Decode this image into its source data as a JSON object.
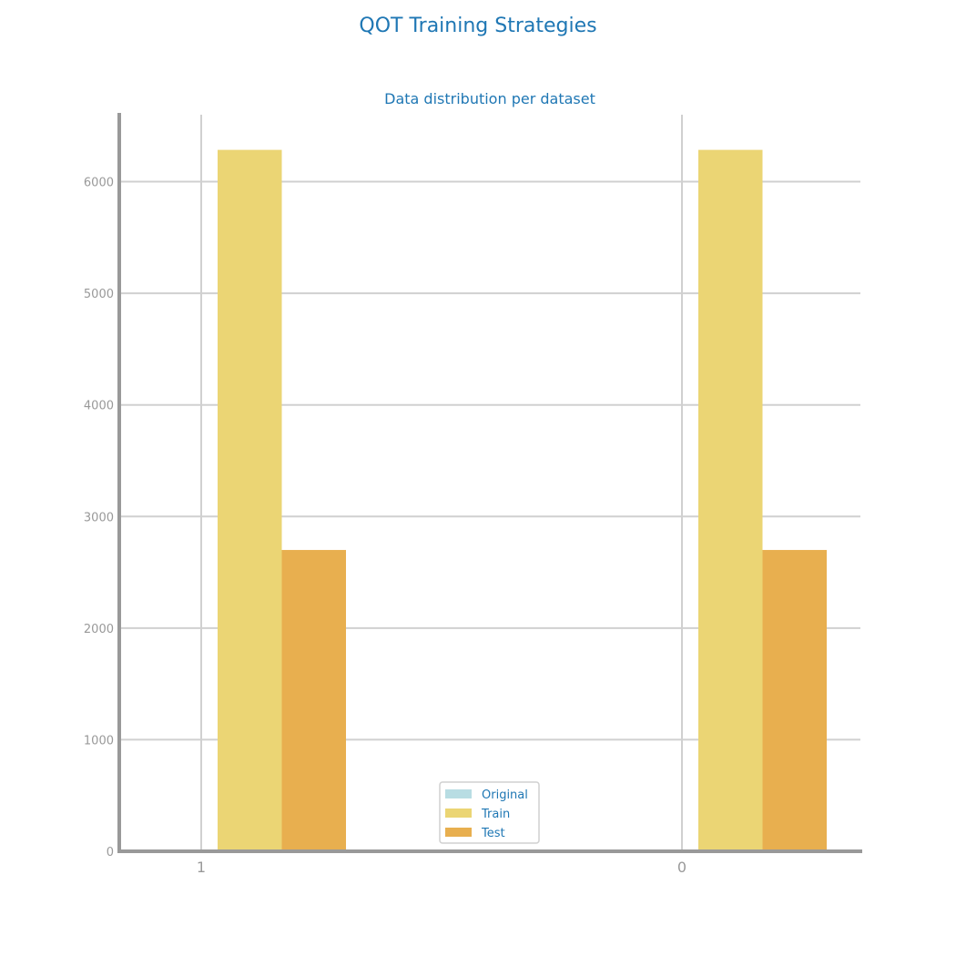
{
  "figure_title": "QOT Training Strategies",
  "chart_data": {
    "type": "bar",
    "title": "Data distribution per dataset",
    "xlabel": "",
    "ylabel": "",
    "categories": [
      "1",
      "0"
    ],
    "series": [
      {
        "name": "Original",
        "values": [
          0,
          0
        ],
        "color": "#b8dde3"
      },
      {
        "name": "Train",
        "values": [
          6285,
          6285
        ],
        "color": "#ebd574"
      },
      {
        "name": "Test",
        "values": [
          2700,
          2700
        ],
        "color": "#e8af4f"
      }
    ],
    "ylim": [
      0,
      6600
    ],
    "yticks": [
      0,
      1000,
      2000,
      3000,
      4000,
      5000,
      6000
    ],
    "grid": true,
    "legend_position": "bottom-center"
  }
}
